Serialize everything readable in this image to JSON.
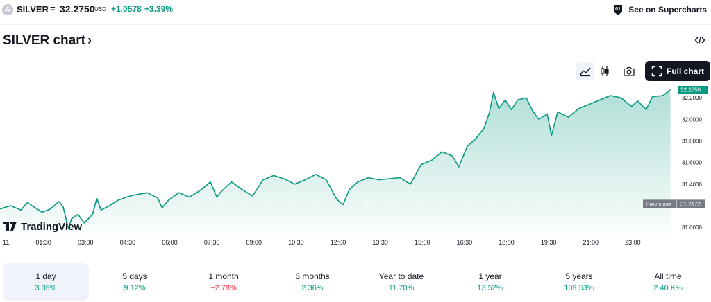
{
  "header": {
    "symbol": "SILVER",
    "separator": "=",
    "price": "32.2750",
    "currency": "USD",
    "change": "+1.0578",
    "change_percent": "+3.39%",
    "supercharts_label": "See on Supercharts",
    "accent_color": "#089981",
    "icons": {
      "symbol": "silver-bars-icon",
      "supercharts": "supercharts-badge-icon"
    }
  },
  "title": {
    "label": "SILVER chart",
    "chevron": "›"
  },
  "toolbar": {
    "full_chart_label": "Full chart",
    "icons": [
      "area-chart-icon",
      "candles-icon",
      "camera-icon",
      "embed-code-icon",
      "fullscreen-icon"
    ]
  },
  "chart_data": {
    "type": "area",
    "color": "#089981",
    "x_ticks": [
      "11",
      "01:30",
      "03:00",
      "04:30",
      "06:00",
      "07:30",
      "09:00",
      "10:30",
      "12:00",
      "13:30",
      "15:00",
      "16:30",
      "18:00",
      "19:30",
      "21:00",
      "23:00"
    ],
    "y_ticks": [
      "31.0000",
      "31.2000",
      "31.4000",
      "31.6000",
      "31.8000",
      "32.0000",
      "32.2000"
    ],
    "ylim": [
      30.95,
      32.31
    ],
    "last_price_label": "32.2750",
    "last_price": 32.275,
    "prev_close_title": "Prev close",
    "prev_close_label": "31.2172",
    "prev_close": 31.2172,
    "watermark": "TradingView",
    "series": [
      {
        "t": 0.0,
        "v": 31.17
      },
      {
        "t": 0.5,
        "v": 31.2
      },
      {
        "t": 1.0,
        "v": 31.16
      },
      {
        "t": 1.3,
        "v": 31.23
      },
      {
        "t": 1.6,
        "v": 31.19
      },
      {
        "t": 2.0,
        "v": 31.14
      },
      {
        "t": 2.4,
        "v": 31.17
      },
      {
        "t": 2.8,
        "v": 31.24
      },
      {
        "t": 3.0,
        "v": 31.19
      },
      {
        "t": 3.25,
        "v": 30.99
      },
      {
        "t": 3.4,
        "v": 31.08
      },
      {
        "t": 3.7,
        "v": 31.12
      },
      {
        "t": 4.0,
        "v": 31.04
      },
      {
        "t": 4.4,
        "v": 31.12
      },
      {
        "t": 4.6,
        "v": 31.27
      },
      {
        "t": 4.8,
        "v": 31.16
      },
      {
        "t": 5.2,
        "v": 31.2
      },
      {
        "t": 5.6,
        "v": 31.25
      },
      {
        "t": 6.0,
        "v": 31.28
      },
      {
        "t": 6.4,
        "v": 31.3
      },
      {
        "t": 7.0,
        "v": 31.32
      },
      {
        "t": 7.5,
        "v": 31.27
      },
      {
        "t": 7.7,
        "v": 31.18
      },
      {
        "t": 8.0,
        "v": 31.25
      },
      {
        "t": 8.5,
        "v": 31.32
      },
      {
        "t": 9.0,
        "v": 31.28
      },
      {
        "t": 9.5,
        "v": 31.34
      },
      {
        "t": 10.0,
        "v": 31.42
      },
      {
        "t": 10.3,
        "v": 31.28
      },
      {
        "t": 10.5,
        "v": 31.33
      },
      {
        "t": 11.0,
        "v": 31.42
      },
      {
        "t": 11.5,
        "v": 31.35
      },
      {
        "t": 12.0,
        "v": 31.29
      },
      {
        "t": 12.5,
        "v": 31.44
      },
      {
        "t": 13.0,
        "v": 31.48
      },
      {
        "t": 13.5,
        "v": 31.45
      },
      {
        "t": 14.0,
        "v": 31.4
      },
      {
        "t": 14.5,
        "v": 31.44
      },
      {
        "t": 15.0,
        "v": 31.49
      },
      {
        "t": 15.5,
        "v": 31.44
      },
      {
        "t": 16.0,
        "v": 31.26
      },
      {
        "t": 16.3,
        "v": 31.21
      },
      {
        "t": 16.6,
        "v": 31.35
      },
      {
        "t": 17.0,
        "v": 31.42
      },
      {
        "t": 17.5,
        "v": 31.46
      },
      {
        "t": 18.0,
        "v": 31.44
      },
      {
        "t": 18.5,
        "v": 31.45
      },
      {
        "t": 19.0,
        "v": 31.46
      },
      {
        "t": 19.5,
        "v": 31.4
      },
      {
        "t": 20.0,
        "v": 31.58
      },
      {
        "t": 20.5,
        "v": 31.62
      },
      {
        "t": 21.0,
        "v": 31.7
      },
      {
        "t": 21.5,
        "v": 31.66
      },
      {
        "t": 21.8,
        "v": 31.56
      },
      {
        "t": 22.2,
        "v": 31.75
      },
      {
        "t": 22.6,
        "v": 31.82
      },
      {
        "t": 23.0,
        "v": 31.92
      },
      {
        "t": 23.25,
        "v": 32.06
      },
      {
        "t": 23.45,
        "v": 32.25
      },
      {
        "t": 23.7,
        "v": 32.1
      },
      {
        "t": 24.0,
        "v": 32.18
      },
      {
        "t": 24.3,
        "v": 32.09
      },
      {
        "t": 24.6,
        "v": 32.18
      },
      {
        "t": 25.0,
        "v": 32.2
      },
      {
        "t": 25.3,
        "v": 32.08
      },
      {
        "t": 25.6,
        "v": 32.0
      },
      {
        "t": 26.0,
        "v": 32.05
      },
      {
        "t": 26.2,
        "v": 31.85
      },
      {
        "t": 26.5,
        "v": 32.07
      },
      {
        "t": 27.0,
        "v": 32.02
      },
      {
        "t": 27.5,
        "v": 32.1
      },
      {
        "t": 28.0,
        "v": 32.14
      },
      {
        "t": 28.5,
        "v": 32.18
      },
      {
        "t": 29.0,
        "v": 32.22
      },
      {
        "t": 29.5,
        "v": 32.2
      },
      {
        "t": 30.0,
        "v": 32.12
      },
      {
        "t": 30.3,
        "v": 32.17
      },
      {
        "t": 30.7,
        "v": 32.09
      },
      {
        "t": 31.0,
        "v": 32.21
      },
      {
        "t": 31.5,
        "v": 32.22
      },
      {
        "t": 31.85,
        "v": 32.275
      }
    ]
  },
  "periods": [
    {
      "label": "1 day",
      "value": "3.39%",
      "trend": "up",
      "active": true
    },
    {
      "label": "5 days",
      "value": "9.12%",
      "trend": "up",
      "active": false
    },
    {
      "label": "1 month",
      "value": "−2.78%",
      "trend": "down",
      "active": false
    },
    {
      "label": "6 months",
      "value": "2.36%",
      "trend": "up",
      "active": false
    },
    {
      "label": "Year to date",
      "value": "11.70%",
      "trend": "up",
      "active": false
    },
    {
      "label": "1 year",
      "value": "13.52%",
      "trend": "up",
      "active": false
    },
    {
      "label": "5 years",
      "value": "109.53%",
      "trend": "up",
      "active": false
    },
    {
      "label": "All time",
      "value": "2.40 K%",
      "trend": "up",
      "active": false
    }
  ]
}
